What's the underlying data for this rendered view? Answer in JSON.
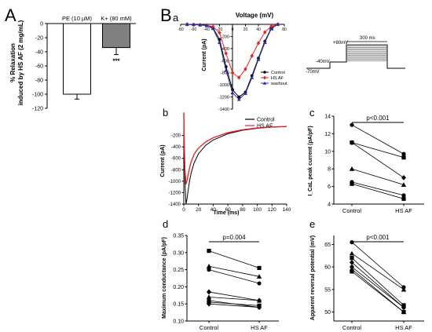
{
  "panel_letters": {
    "A": "A",
    "B": "B",
    "a": "a",
    "b": "b",
    "c": "c",
    "d": "d",
    "e": "e"
  },
  "chart_data": [
    {
      "id": "A",
      "type": "bar",
      "categories": [
        "PE (10 µM)",
        "K+ (80 mM)"
      ],
      "values": [
        -100,
        -34
      ],
      "errors": [
        7,
        10
      ],
      "colors": [
        "#ffffff",
        "#808080"
      ],
      "significance": [
        "",
        "***"
      ],
      "ylabel_lines": [
        "% Relaxation",
        "induced by HS AF (2 mg/mL)"
      ],
      "yticks": [
        "0",
        "-20",
        "-40",
        "-60",
        "-80",
        "-100",
        "-120"
      ],
      "ylim": [
        -120,
        0
      ]
    },
    {
      "id": "Ba",
      "type": "line",
      "title": "Voltage (mV)",
      "ylabel": "Current (pA)",
      "xlim": [
        -80,
        80
      ],
      "ylim": [
        -1400,
        0
      ],
      "xticks": [
        "-80",
        "-60",
        "-40",
        "-20",
        "0",
        "20",
        "40",
        "60",
        "80"
      ],
      "yticks": [
        "-200",
        "-400",
        "-600",
        "-800",
        "-1000",
        "-1200",
        "-1400"
      ],
      "x": [
        -70,
        -60,
        -50,
        -40,
        -30,
        -20,
        -10,
        0,
        10,
        20,
        30,
        40,
        50,
        60,
        70
      ],
      "series": [
        {
          "name": "Control",
          "color": "#000000",
          "marker": "circle",
          "values": [
            0,
            -5,
            -10,
            -20,
            -60,
            -250,
            -700,
            -1080,
            -1200,
            -1120,
            -850,
            -560,
            -280,
            -60,
            0
          ]
        },
        {
          "name": "HS AF",
          "color": "#e8262a",
          "marker": "diamond",
          "values": [
            0,
            -5,
            -10,
            -15,
            -40,
            -140,
            -480,
            -800,
            -880,
            -740,
            -520,
            -310,
            -130,
            -30,
            0
          ]
        },
        {
          "name": "washout",
          "color": "#2c2ca8",
          "marker": "triangle",
          "values": [
            0,
            -5,
            -10,
            -20,
            -70,
            -300,
            -760,
            -1130,
            -1240,
            -1140,
            -880,
            -580,
            -300,
            -70,
            0
          ]
        }
      ],
      "protocol": {
        "holding": "-70mV",
        "step1": "-40mV",
        "step2": "+80mV",
        "duration": "300 ms"
      }
    },
    {
      "id": "Bb",
      "type": "line",
      "xlabel": "Time (ms)",
      "ylabel": "Current (pA)",
      "xlim": [
        0,
        140
      ],
      "ylim": [
        -1400,
        0
      ],
      "xticks": [
        "0",
        "20",
        "40",
        "60",
        "80",
        "100",
        "120",
        "140"
      ],
      "yticks": [
        "-200",
        "-400",
        "-600",
        "-800",
        "-1000",
        "-1200",
        "-1400"
      ],
      "t": [
        0,
        0.5,
        1.5,
        3,
        4.5,
        6,
        8,
        10,
        14,
        20,
        30,
        40,
        60,
        80,
        100,
        120,
        140
      ],
      "series": [
        {
          "name": "Control",
          "color": "#000000",
          "values": [
            200,
            -300,
            -1000,
            -1400,
            -1300,
            -1150,
            -990,
            -860,
            -680,
            -520,
            -370,
            -280,
            -170,
            -110,
            -75,
            -55,
            -45
          ]
        },
        {
          "name": "HS AF",
          "color": "#e8262a",
          "values": [
            200,
            -250,
            -800,
            -1050,
            -980,
            -880,
            -760,
            -660,
            -530,
            -420,
            -310,
            -240,
            -150,
            -100,
            -70,
            -52,
            -42
          ]
        }
      ]
    },
    {
      "id": "Bc",
      "type": "scatter",
      "ylabel": "I_CaL peak current (pA/pF)",
      "categories": [
        "Control",
        "HS AF"
      ],
      "significance": "p<0.001",
      "ylim": [
        4,
        14
      ],
      "yticks": [
        "4",
        "6",
        "8",
        "10",
        "12",
        "14"
      ],
      "pairs": [
        [
          13,
          9.7
        ],
        [
          11,
          9.3
        ],
        [
          11,
          7
        ],
        [
          8,
          6.2
        ],
        [
          6.5,
          5
        ],
        [
          6.3,
          4.6
        ]
      ],
      "markers": [
        "circle",
        "square",
        "diamond",
        "triangle",
        "circle",
        "square"
      ]
    },
    {
      "id": "Bd",
      "type": "scatter",
      "ylabel": "Maximum conductance (pA/pF)",
      "categories": [
        "Control",
        "HS AF"
      ],
      "significance": "p=0.004",
      "ylim": [
        0.1,
        0.35
      ],
      "yticks": [
        "0.10",
        "0.15",
        "0.20",
        "0.25",
        "0.30",
        "0.35"
      ],
      "pairs": [
        [
          0.305,
          0.255
        ],
        [
          0.26,
          0.23
        ],
        [
          0.25,
          0.21
        ],
        [
          0.185,
          0.16
        ],
        [
          0.17,
          0.16
        ],
        [
          0.16,
          0.14
        ],
        [
          0.155,
          0.145
        ],
        [
          0.15,
          0.14
        ]
      ],
      "markers": [
        "square",
        "triangle",
        "circle",
        "diamond",
        "triangle",
        "circle",
        "square",
        "diamond"
      ]
    },
    {
      "id": "Be",
      "type": "scatter",
      "ylabel": "Apparent reversal potential (mV)",
      "categories": [
        "Control",
        "HS AF"
      ],
      "significance": "p<0.001",
      "ylim": [
        48,
        67
      ],
      "yticks": [
        "50",
        "55",
        "60",
        "65"
      ],
      "pairs": [
        [
          65.5,
          55.5
        ],
        [
          63,
          55
        ],
        [
          62,
          51.5
        ],
        [
          61,
          51
        ],
        [
          60,
          51
        ],
        [
          59.5,
          50
        ],
        [
          59,
          50
        ]
      ],
      "markers": [
        "circle",
        "triangle",
        "square",
        "diamond",
        "circle",
        "triangle",
        "square"
      ]
    }
  ]
}
